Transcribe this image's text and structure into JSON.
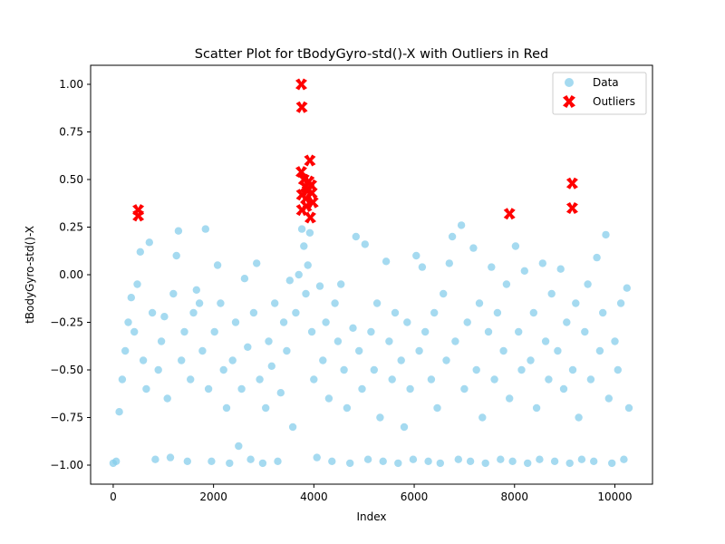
{
  "chart_data": {
    "type": "scatter",
    "title": "Scatter Plot for tBodyGyro-std()-X with Outliers in Red",
    "xlabel": "Index",
    "ylabel": "tBodyGyro-std()-X",
    "xlim": [
      -450,
      10750
    ],
    "ylim": [
      -1.1,
      1.1
    ],
    "x_ticks": [
      0,
      2000,
      4000,
      6000,
      8000,
      10000
    ],
    "x_tick_labels": [
      "0",
      "2000",
      "4000",
      "6000",
      "8000",
      "10000"
    ],
    "y_ticks": [
      -1.0,
      -0.75,
      -0.5,
      -0.25,
      0.0,
      0.25,
      0.5,
      0.75,
      1.0
    ],
    "y_tick_labels": [
      "−1.00",
      "−0.75",
      "−0.50",
      "−0.25",
      "0.00",
      "0.25",
      "0.50",
      "0.75",
      "1.00"
    ],
    "grid": false,
    "legend_position": "top-right",
    "series": [
      {
        "name": "Data",
        "marker": "circle",
        "color": "#87CEEB",
        "points": [
          [
            0,
            -0.99
          ],
          [
            60,
            -0.98
          ],
          [
            120,
            -0.72
          ],
          [
            180,
            -0.55
          ],
          [
            240,
            -0.4
          ],
          [
            300,
            -0.25
          ],
          [
            360,
            -0.12
          ],
          [
            420,
            -0.3
          ],
          [
            480,
            -0.05
          ],
          [
            540,
            0.12
          ],
          [
            600,
            -0.45
          ],
          [
            660,
            -0.6
          ],
          [
            720,
            0.17
          ],
          [
            780,
            -0.2
          ],
          [
            840,
            -0.97
          ],
          [
            900,
            -0.5
          ],
          [
            960,
            -0.35
          ],
          [
            1020,
            -0.22
          ],
          [
            1080,
            -0.65
          ],
          [
            1140,
            -0.96
          ],
          [
            1200,
            -0.1
          ],
          [
            1260,
            0.1
          ],
          [
            1300,
            0.23
          ],
          [
            1360,
            -0.45
          ],
          [
            1420,
            -0.3
          ],
          [
            1480,
            -0.98
          ],
          [
            1540,
            -0.55
          ],
          [
            1600,
            -0.2
          ],
          [
            1660,
            -0.08
          ],
          [
            1720,
            -0.15
          ],
          [
            1780,
            -0.4
          ],
          [
            1840,
            0.24
          ],
          [
            1900,
            -0.6
          ],
          [
            1960,
            -0.98
          ],
          [
            2020,
            -0.3
          ],
          [
            2080,
            0.05
          ],
          [
            2140,
            -0.15
          ],
          [
            2200,
            -0.5
          ],
          [
            2260,
            -0.7
          ],
          [
            2320,
            -0.99
          ],
          [
            2380,
            -0.45
          ],
          [
            2440,
            -0.25
          ],
          [
            2500,
            -0.9
          ],
          [
            2560,
            -0.6
          ],
          [
            2620,
            -0.02
          ],
          [
            2680,
            -0.38
          ],
          [
            2740,
            -0.97
          ],
          [
            2800,
            -0.2
          ],
          [
            2860,
            0.06
          ],
          [
            2920,
            -0.55
          ],
          [
            2980,
            -0.99
          ],
          [
            3040,
            -0.7
          ],
          [
            3100,
            -0.35
          ],
          [
            3160,
            -0.48
          ],
          [
            3220,
            -0.15
          ],
          [
            3280,
            -0.98
          ],
          [
            3340,
            -0.62
          ],
          [
            3400,
            -0.25
          ],
          [
            3460,
            -0.4
          ],
          [
            3520,
            -0.03
          ],
          [
            3580,
            -0.8
          ],
          [
            3640,
            -0.2
          ],
          [
            3700,
            0.0
          ],
          [
            3760,
            0.24
          ],
          [
            3800,
            0.15
          ],
          [
            3840,
            -0.1
          ],
          [
            3880,
            0.05
          ],
          [
            3920,
            0.22
          ],
          [
            3960,
            -0.3
          ],
          [
            4000,
            -0.55
          ],
          [
            4060,
            -0.96
          ],
          [
            4120,
            -0.06
          ],
          [
            4180,
            -0.45
          ],
          [
            4240,
            -0.25
          ],
          [
            4300,
            -0.65
          ],
          [
            4360,
            -0.98
          ],
          [
            4420,
            -0.15
          ],
          [
            4480,
            -0.35
          ],
          [
            4540,
            -0.05
          ],
          [
            4600,
            -0.5
          ],
          [
            4660,
            -0.7
          ],
          [
            4720,
            -0.99
          ],
          [
            4780,
            -0.28
          ],
          [
            4840,
            0.2
          ],
          [
            4900,
            -0.4
          ],
          [
            4960,
            -0.6
          ],
          [
            5020,
            0.16
          ],
          [
            5080,
            -0.97
          ],
          [
            5140,
            -0.3
          ],
          [
            5200,
            -0.5
          ],
          [
            5260,
            -0.15
          ],
          [
            5320,
            -0.75
          ],
          [
            5380,
            -0.98
          ],
          [
            5440,
            0.07
          ],
          [
            5500,
            -0.35
          ],
          [
            5560,
            -0.55
          ],
          [
            5620,
            -0.2
          ],
          [
            5680,
            -0.99
          ],
          [
            5740,
            -0.45
          ],
          [
            5800,
            -0.8
          ],
          [
            5860,
            -0.25
          ],
          [
            5920,
            -0.6
          ],
          [
            5980,
            -0.97
          ],
          [
            6040,
            0.1
          ],
          [
            6100,
            -0.4
          ],
          [
            6160,
            0.04
          ],
          [
            6220,
            -0.3
          ],
          [
            6280,
            -0.98
          ],
          [
            6340,
            -0.55
          ],
          [
            6400,
            -0.2
          ],
          [
            6460,
            -0.7
          ],
          [
            6520,
            -0.99
          ],
          [
            6580,
            -0.1
          ],
          [
            6640,
            -0.45
          ],
          [
            6700,
            0.06
          ],
          [
            6760,
            0.2
          ],
          [
            6820,
            -0.35
          ],
          [
            6880,
            -0.97
          ],
          [
            6940,
            0.26
          ],
          [
            7000,
            -0.6
          ],
          [
            7060,
            -0.25
          ],
          [
            7120,
            -0.98
          ],
          [
            7180,
            0.14
          ],
          [
            7240,
            -0.5
          ],
          [
            7300,
            -0.15
          ],
          [
            7360,
            -0.75
          ],
          [
            7420,
            -0.99
          ],
          [
            7480,
            -0.3
          ],
          [
            7540,
            0.04
          ],
          [
            7600,
            -0.55
          ],
          [
            7660,
            -0.2
          ],
          [
            7720,
            -0.97
          ],
          [
            7780,
            -0.4
          ],
          [
            7840,
            -0.05
          ],
          [
            7900,
            -0.65
          ],
          [
            7960,
            -0.98
          ],
          [
            8020,
            0.15
          ],
          [
            8080,
            -0.3
          ],
          [
            8140,
            -0.5
          ],
          [
            8200,
            0.02
          ],
          [
            8260,
            -0.99
          ],
          [
            8320,
            -0.45
          ],
          [
            8380,
            -0.2
          ],
          [
            8440,
            -0.7
          ],
          [
            8500,
            -0.97
          ],
          [
            8560,
            0.06
          ],
          [
            8620,
            -0.35
          ],
          [
            8680,
            -0.55
          ],
          [
            8740,
            -0.1
          ],
          [
            8800,
            -0.98
          ],
          [
            8860,
            -0.4
          ],
          [
            8920,
            0.03
          ],
          [
            8980,
            -0.6
          ],
          [
            9040,
            -0.25
          ],
          [
            9100,
            -0.99
          ],
          [
            9160,
            -0.5
          ],
          [
            9220,
            -0.15
          ],
          [
            9280,
            -0.75
          ],
          [
            9340,
            -0.97
          ],
          [
            9400,
            -0.3
          ],
          [
            9460,
            -0.05
          ],
          [
            9520,
            -0.55
          ],
          [
            9580,
            -0.98
          ],
          [
            9640,
            0.09
          ],
          [
            9700,
            -0.4
          ],
          [
            9760,
            -0.2
          ],
          [
            9820,
            0.21
          ],
          [
            9880,
            -0.65
          ],
          [
            9940,
            -0.99
          ],
          [
            10000,
            -0.35
          ],
          [
            10060,
            -0.5
          ],
          [
            10120,
            -0.15
          ],
          [
            10180,
            -0.97
          ],
          [
            10240,
            -0.07
          ],
          [
            10280,
            -0.7
          ]
        ]
      },
      {
        "name": "Outliers",
        "marker": "X",
        "color": "#FF0000",
        "points": [
          [
            500,
            0.34
          ],
          [
            500,
            0.31
          ],
          [
            3750,
            1.0
          ],
          [
            3760,
            0.88
          ],
          [
            3750,
            0.54
          ],
          [
            3760,
            0.42
          ],
          [
            3760,
            0.34
          ],
          [
            3800,
            0.5
          ],
          [
            3830,
            0.46
          ],
          [
            3840,
            0.4
          ],
          [
            3850,
            0.36
          ],
          [
            3870,
            0.44
          ],
          [
            3900,
            0.49
          ],
          [
            3920,
            0.6
          ],
          [
            3930,
            0.3
          ],
          [
            3950,
            0.47
          ],
          [
            3960,
            0.43
          ],
          [
            3980,
            0.38
          ],
          [
            7900,
            0.32
          ],
          [
            9150,
            0.48
          ],
          [
            9150,
            0.35
          ]
        ]
      }
    ]
  }
}
